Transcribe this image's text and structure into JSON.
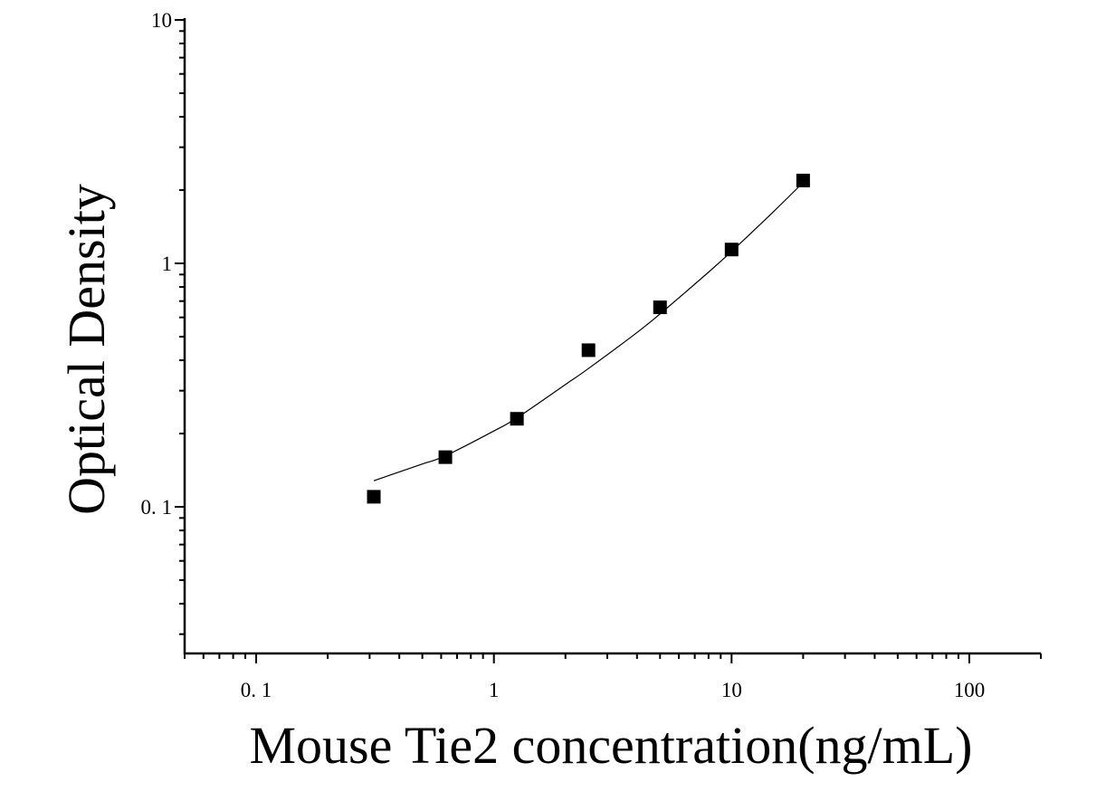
{
  "chart_data": {
    "type": "scatter",
    "xlabel": "Mouse Tie2 concentration(ng/mL)",
    "ylabel": "Optical Density",
    "xscale": "log",
    "yscale": "log",
    "xlim": [
      0.05,
      200
    ],
    "ylim": [
      0.025,
      10
    ],
    "x_ticks": [
      {
        "value": 0.1,
        "label": "0. 1"
      },
      {
        "value": 1,
        "label": "1"
      },
      {
        "value": 10,
        "label": "10"
      },
      {
        "value": 100,
        "label": "100"
      }
    ],
    "y_ticks": [
      {
        "value": 0.1,
        "label": "0. 1"
      },
      {
        "value": 1,
        "label": "1"
      },
      {
        "value": 10,
        "label": "10"
      }
    ],
    "series": [
      {
        "marker": "square",
        "color": "#000000",
        "x": [
          0.3125,
          0.625,
          1.25,
          2.5,
          5,
          10,
          20
        ],
        "y": [
          0.11,
          0.16,
          0.23,
          0.44,
          0.66,
          1.14,
          2.19
        ]
      }
    ],
    "fit_curve": {
      "color": "#000000",
      "x": [
        0.3125,
        0.5,
        0.625,
        1,
        1.25,
        2,
        2.5,
        4,
        5,
        8,
        10,
        15,
        20
      ],
      "y": [
        0.128,
        0.15,
        0.162,
        0.205,
        0.232,
        0.318,
        0.37,
        0.52,
        0.62,
        0.92,
        1.12,
        1.63,
        2.15
      ]
    },
    "grid": false,
    "legend": "none"
  }
}
